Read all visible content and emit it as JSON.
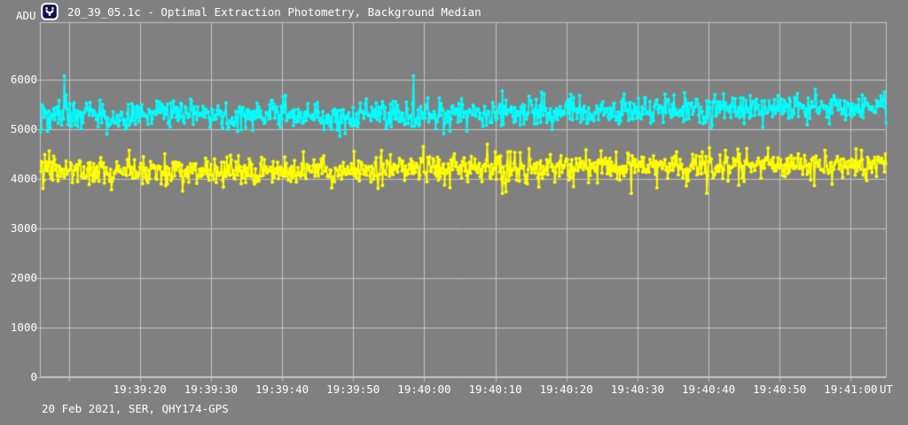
{
  "window": {
    "background_color": "#808080",
    "kind": "lightcurve-photometry-plot"
  },
  "header": {
    "y_axis_title": "ADU",
    "app_icon": "lightcurve-app-icon",
    "title": "20_39_05.1c - Optimal Extraction Photometry, Background Median"
  },
  "footer": {
    "recording_info": "20 Feb 2021, SER, QHY174-GPS",
    "x_axis_unit": "UT"
  },
  "colors": {
    "background": "#808080",
    "grid": "#c6c6c6",
    "axis_text": "#ffffff",
    "icon_fill": "#10104a",
    "icon_stroke": "#ffffff",
    "series_target": "#00ffff",
    "series_comparison": "#ffff00"
  },
  "chart_data": {
    "type": "line",
    "title": "20_39_05.1c - Optimal Extraction Photometry, Background Median",
    "ylabel": "ADU",
    "x_axis_unit": "UT",
    "footer_annotation": "20 Feb 2021, SER, QHY174-GPS",
    "grid": true,
    "legend": "none",
    "x_start_time": "19:39:06",
    "x_end_time": "19:41:05",
    "x_tick_interval_seconds": 10,
    "x_ticks": [
      {
        "time": "19:39:10",
        "label": ""
      },
      {
        "time": "19:39:20",
        "label": "19:39:20"
      },
      {
        "time": "19:39:30",
        "label": "19:39:30"
      },
      {
        "time": "19:39:40",
        "label": "19:39:40"
      },
      {
        "time": "19:39:50",
        "label": "19:39:50"
      },
      {
        "time": "19:40:00",
        "label": "19:40:00"
      },
      {
        "time": "19:40:10",
        "label": "19:40:10"
      },
      {
        "time": "19:40:20",
        "label": "19:40:20"
      },
      {
        "time": "19:40:30",
        "label": "19:40:30"
      },
      {
        "time": "19:40:40",
        "label": "19:40:40"
      },
      {
        "time": "19:40:50",
        "label": "19:40:50"
      },
      {
        "time": "19:41:00",
        "label": "19:41:00"
      }
    ],
    "y_ticks": [
      0,
      1000,
      2000,
      3000,
      4000,
      5000,
      6000
    ],
    "ylim": [
      0,
      7160
    ],
    "noise_seed": 20210220,
    "series": [
      {
        "name": "target-star-cyan",
        "color": "#00ffff",
        "marker": "dot",
        "marker_size_px": 4,
        "points_per_second": 8,
        "adu_mean_start": 5280,
        "adu_mean_end": 5480,
        "trend_power": 2.2,
        "adu_noise_sigma": 140,
        "outlier_fraction": 0.045,
        "outlier_scale": 2.1,
        "adu_min": 4860,
        "adu_max": 6080
      },
      {
        "name": "comparison-star-yellow",
        "color": "#ffff00",
        "marker": "dot",
        "marker_size_px": 4,
        "points_per_second": 8,
        "adu_mean_start": 4150,
        "adu_mean_end": 4300,
        "trend_power": 1.2,
        "adu_noise_sigma": 145,
        "outlier_fraction": 0.045,
        "outlier_scale": 2.1,
        "adu_min": 3710,
        "adu_max": 4700
      }
    ]
  }
}
